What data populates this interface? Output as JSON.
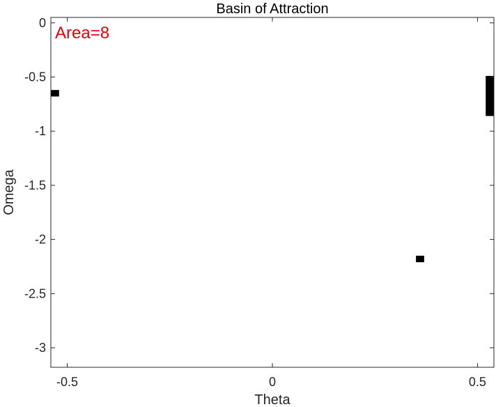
{
  "chart_data": {
    "type": "heatmap",
    "title": "Basin of Attraction",
    "xlabel": "Theta",
    "ylabel": "Omega",
    "xlim": [
      -0.54,
      0.54
    ],
    "ylim": [
      -3.18,
      0.05
    ],
    "y_reversed": false,
    "x_ticks": [
      -0.5,
      0,
      0.5
    ],
    "x_tick_labels": [
      "-0.5",
      "0",
      "0.5"
    ],
    "y_ticks": [
      0,
      -0.5,
      -1,
      -1.5,
      -2,
      -2.5,
      -3
    ],
    "y_tick_labels": [
      "0",
      "-0.5",
      "-1",
      "-1.5",
      "-2",
      "-2.5",
      "-3"
    ],
    "grid": false,
    "annotation": {
      "text": "Area=8",
      "color": "#e8000b"
    },
    "fill_color": "#000000",
    "cells": [
      {
        "x0": -0.54,
        "x1": -0.52,
        "y0": -0.68,
        "y1": -0.62
      },
      {
        "x0": 0.35,
        "x1": 0.37,
        "y0": -2.21,
        "y1": -2.15
      },
      {
        "x0": 0.52,
        "x1": 0.54,
        "y0": -0.86,
        "y1": -0.49
      }
    ]
  }
}
